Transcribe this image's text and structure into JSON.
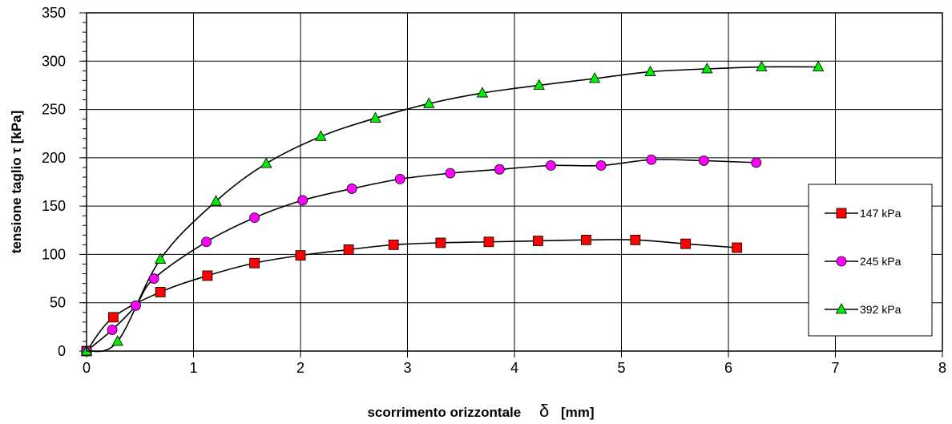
{
  "chart_data": {
    "type": "scatter",
    "xlabel": "scorrimento orizzontale",
    "xlabel_symbol": "δ",
    "xlabel_unit": "[mm]",
    "ylabel": "tensione taglio  τ   [kPa]",
    "xlim": [
      0,
      8
    ],
    "ylim": [
      0,
      350
    ],
    "x_ticks": [
      "0",
      "1",
      "2",
      "3",
      "4",
      "5",
      "6",
      "7",
      "8"
    ],
    "y_ticks": [
      "0",
      "50",
      "100",
      "150",
      "200",
      "250",
      "300",
      "350"
    ],
    "grid": true,
    "legend_position": "right",
    "series": [
      {
        "name": "147 kPa",
        "marker": "square",
        "color": "#ff0000",
        "x": [
          0,
          0.25,
          0.69,
          1.13,
          1.57,
          2.0,
          2.45,
          2.87,
          3.31,
          3.76,
          4.22,
          4.67,
          5.13,
          5.6,
          6.08
        ],
        "y": [
          0,
          35,
          61,
          78,
          91,
          99,
          105,
          110,
          112,
          113,
          114,
          115,
          115,
          111,
          107
        ]
      },
      {
        "name": "245 kPa",
        "marker": "circle",
        "color": "#ff00ff",
        "x": [
          0,
          0.24,
          0.46,
          0.63,
          1.12,
          1.57,
          2.02,
          2.48,
          2.93,
          3.4,
          3.86,
          4.34,
          4.81,
          5.28,
          5.77,
          6.26
        ],
        "y": [
          0,
          22,
          47,
          75,
          113,
          138,
          156,
          168,
          178,
          184,
          188,
          192,
          192,
          198,
          197,
          195
        ]
      },
      {
        "name": "392 kPa",
        "marker": "triangle",
        "color": "#00ee00",
        "x": [
          0,
          0.29,
          0.69,
          1.21,
          1.68,
          2.19,
          2.7,
          3.2,
          3.7,
          4.23,
          4.75,
          5.27,
          5.8,
          6.31,
          6.84
        ],
        "y": [
          0,
          10,
          95,
          155,
          194,
          222,
          241,
          256,
          267,
          275,
          282,
          289,
          292,
          294,
          294
        ]
      }
    ]
  }
}
